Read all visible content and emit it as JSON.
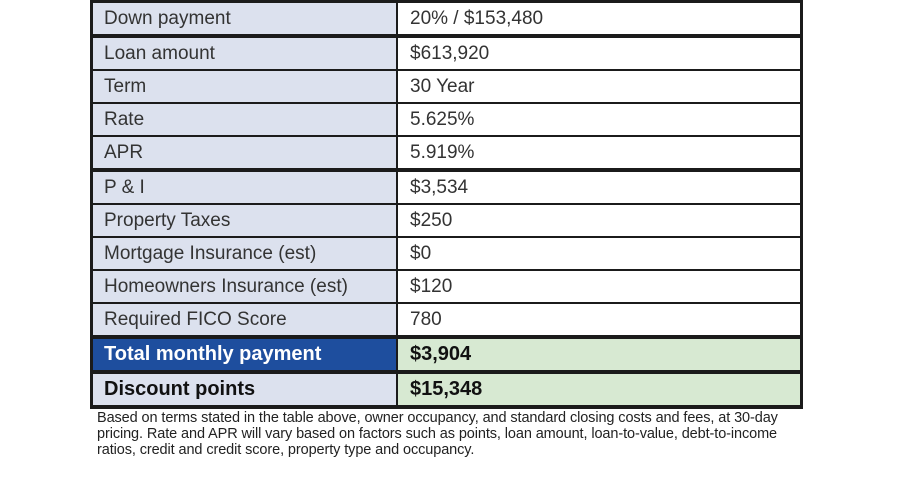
{
  "colors": {
    "label_cell_bg": "#dce1ee",
    "value_cell_bg": "#ffffff",
    "total_row_bg": "#1e4e9e",
    "total_row_text": "#ffffff",
    "result_value_bg": "#d7e9d2",
    "border": "#1b1b1b",
    "cell_text": "#333333",
    "footnote_text": "#222222"
  },
  "table": {
    "rows": [
      {
        "label": "Down payment",
        "value": "20% / $153,480",
        "style": "normal",
        "divider_after": true
      },
      {
        "label": "Loan amount",
        "value": "$613,920",
        "style": "normal",
        "divider_after": false
      },
      {
        "label": "Term",
        "value": "30 Year",
        "style": "normal",
        "divider_after": false
      },
      {
        "label": "Rate",
        "value": "5.625%",
        "style": "normal",
        "divider_after": false
      },
      {
        "label": "APR",
        "value": "5.919%",
        "style": "normal",
        "divider_after": true
      },
      {
        "label": "P & I",
        "value": "$3,534",
        "style": "normal",
        "divider_after": false
      },
      {
        "label": "Property Taxes",
        "value": "$250",
        "style": "normal",
        "divider_after": false
      },
      {
        "label": "Mortgage Insurance (est)",
        "value": "$0",
        "style": "normal",
        "divider_after": false
      },
      {
        "label": "Homeowners Insurance (est)",
        "value": "$120",
        "style": "normal",
        "divider_after": false
      },
      {
        "label": "Required FICO Score",
        "value": "780",
        "style": "normal",
        "divider_after": true
      },
      {
        "label": "Total monthly payment",
        "value": "$3,904",
        "style": "total",
        "divider_after": true
      },
      {
        "label": "Discount points",
        "value": "$15,348",
        "style": "discount",
        "divider_after": false
      }
    ]
  },
  "footnote": {
    "lines": [
      "Based on terms stated in the table above, owner occupancy, and standard closing costs and fees, at 30-day",
      "pricing. Rate and APR will vary based on factors such as points, loan amount, loan-to-value, debt-to-income",
      "ratios, credit and credit score, property type and occupancy."
    ]
  }
}
